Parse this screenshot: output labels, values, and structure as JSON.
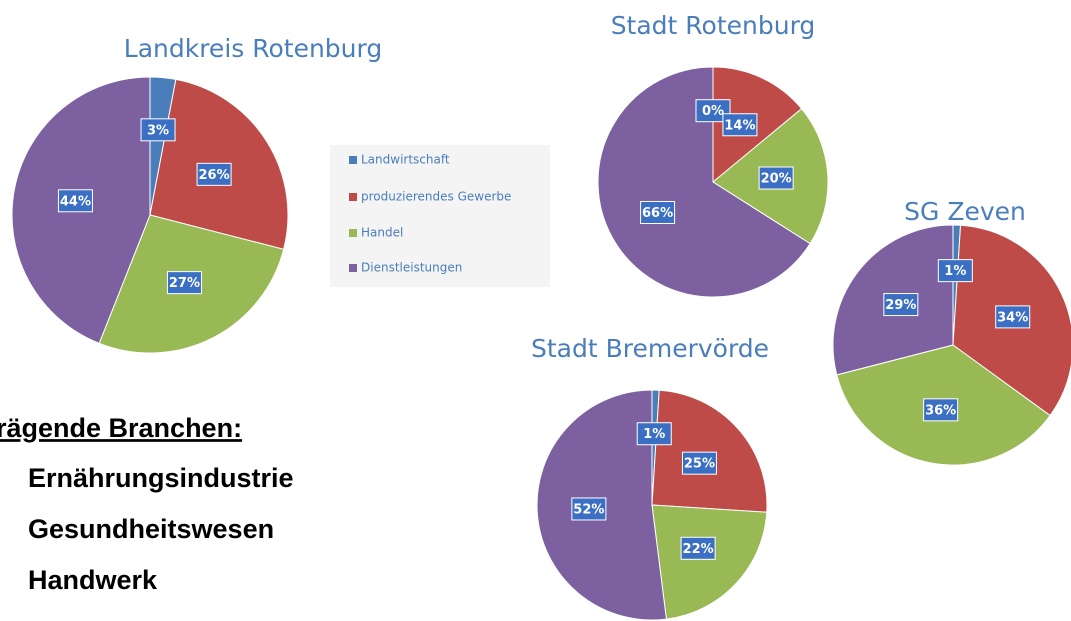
{
  "legend": {
    "categories": [
      "Landwirtschaft",
      "produzierendes Gewerbe",
      "Handel",
      "Dienstleistungen"
    ],
    "colors": [
      "#4a7ebb",
      "#be4b48",
      "#98b954",
      "#7d60a0"
    ]
  },
  "chart_data": [
    {
      "type": "pie",
      "title": "Landkreis Rotenburg",
      "values": [
        3,
        26,
        27,
        44
      ],
      "value_labels": [
        "3%",
        "26%",
        "27%",
        "44%"
      ]
    },
    {
      "type": "pie",
      "title": "Stadt Rotenburg",
      "values": [
        0,
        14,
        20,
        66
      ],
      "value_labels": [
        "0%",
        "14%",
        "20%",
        "66%"
      ]
    },
    {
      "type": "pie",
      "title": "SG Zeven",
      "values": [
        1,
        34,
        36,
        29
      ],
      "value_labels": [
        "1%",
        "34%",
        "36%",
        "29%"
      ]
    },
    {
      "type": "pie",
      "title": "Stadt Bremervörde",
      "values": [
        1,
        25,
        22,
        52
      ],
      "value_labels": [
        "1%",
        "25%",
        "22%",
        "52%"
      ]
    }
  ],
  "branches": {
    "heading": "rägende Branchen:",
    "items": [
      "Ernährungsindustrie",
      "Gesundheitswesen",
      "Handwerk"
    ]
  }
}
